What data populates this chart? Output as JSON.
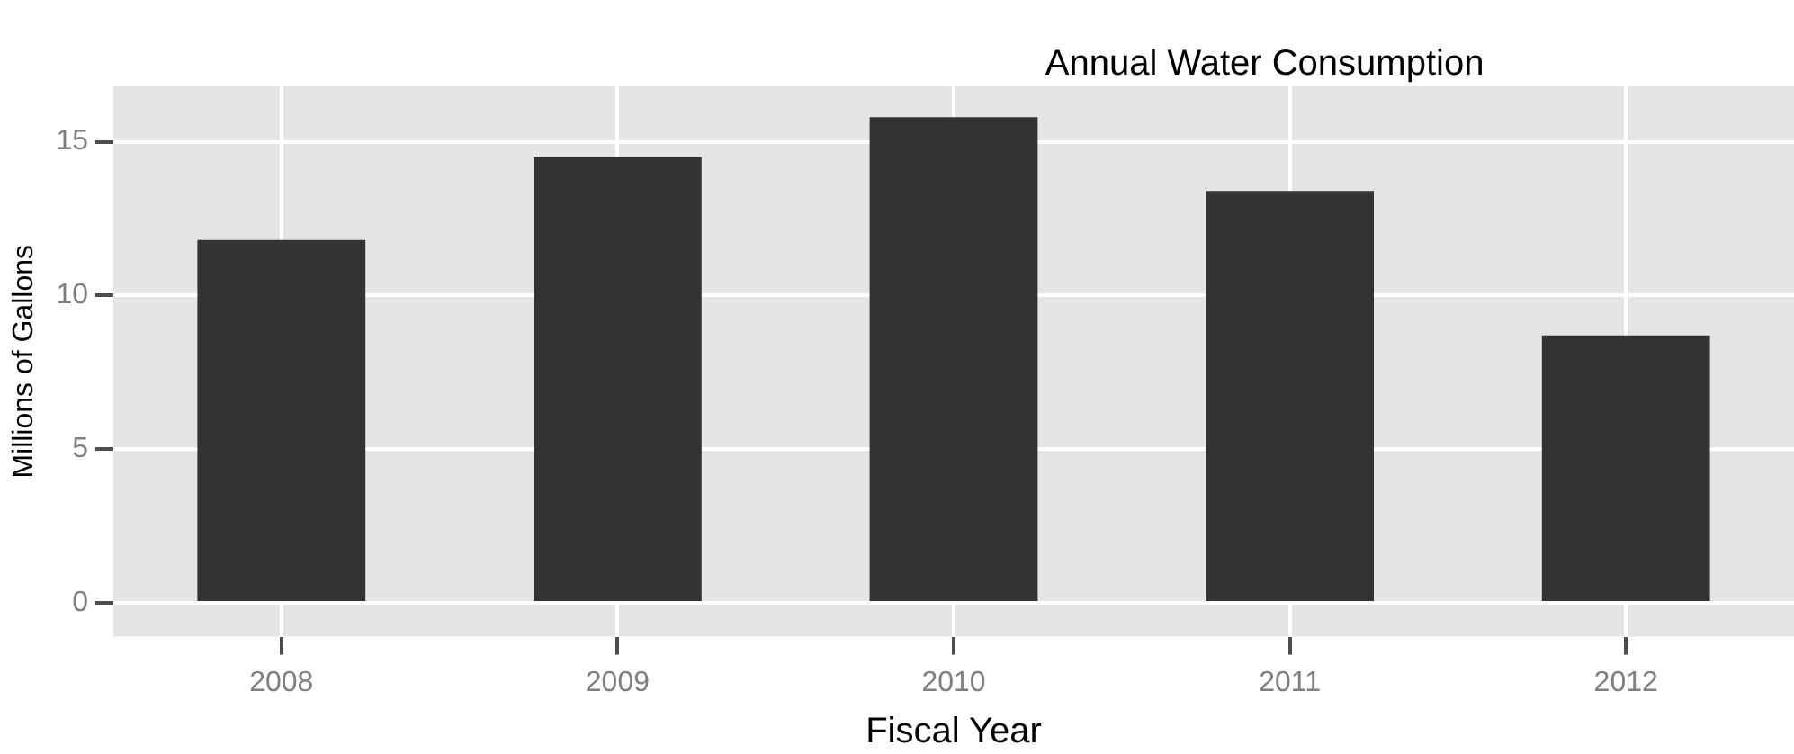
{
  "chart_data": {
    "type": "bar",
    "title": "Annual Water Consumption",
    "xlabel": "Fiscal Year",
    "ylabel": "Millions of Gallons",
    "categories": [
      "2008",
      "2009",
      "2010",
      "2011",
      "2012"
    ],
    "values": [
      11.8,
      14.5,
      15.8,
      13.4,
      8.7
    ],
    "color": "#333333",
    "ylim": [
      -1.1,
      16.8
    ],
    "yticks": [
      0,
      5,
      10,
      15
    ],
    "grid": true
  }
}
